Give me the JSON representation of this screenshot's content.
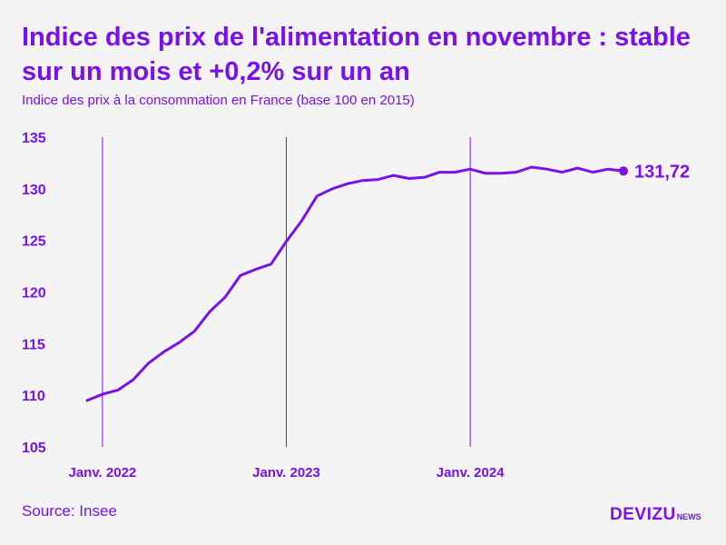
{
  "title": "Indice des prix de l'alimentation en novembre : stable sur un mois et +0,2% sur un an",
  "subtitle": "Indice des prix à la consommation en France (base 100 en 2015)",
  "source": "Source: Insee",
  "logo": {
    "main": "DEVIZU",
    "sub": "NEWS"
  },
  "colors": {
    "accent": "#7a10ea",
    "background": "#f5f4f4"
  },
  "chart_data": {
    "type": "line",
    "title": "Indice des prix de l'alimentation en novembre : stable sur un mois et +0,2% sur un an",
    "subtitle": "Indice des prix à la consommation en France (base 100 en 2015)",
    "xlabel": "",
    "ylabel": "",
    "ylim": [
      105,
      135
    ],
    "yticks": [
      105,
      110,
      115,
      120,
      125,
      130,
      135
    ],
    "xlim": [
      "2021-12",
      "2024-11"
    ],
    "xticks": [
      {
        "x": "2022-01",
        "label": "Janv. 2022"
      },
      {
        "x": "2023-01",
        "label": "Janv. 2023"
      },
      {
        "x": "2024-01",
        "label": "Janv. 2024"
      }
    ],
    "grid": "vertical lines at January ticks",
    "x": [
      "2021-12",
      "2022-01",
      "2022-02",
      "2022-03",
      "2022-04",
      "2022-05",
      "2022-06",
      "2022-07",
      "2022-08",
      "2022-09",
      "2022-10",
      "2022-11",
      "2022-12",
      "2023-01",
      "2023-02",
      "2023-03",
      "2023-04",
      "2023-05",
      "2023-06",
      "2023-07",
      "2023-08",
      "2023-09",
      "2023-10",
      "2023-11",
      "2023-12",
      "2024-01",
      "2024-02",
      "2024-03",
      "2024-04",
      "2024-05",
      "2024-06",
      "2024-07",
      "2024-08",
      "2024-09",
      "2024-10",
      "2024-11"
    ],
    "series": [
      {
        "values": [
          109.5,
          110.1,
          110.5,
          111.5,
          113.1,
          114.2,
          115.1,
          116.2,
          118.1,
          119.5,
          121.6,
          122.2,
          122.7,
          124.9,
          126.9,
          129.3,
          130.0,
          130.5,
          130.8,
          130.9,
          131.3,
          131.0,
          131.1,
          131.6,
          131.6,
          131.9,
          131.5,
          131.5,
          131.6,
          132.1,
          131.9,
          131.6,
          132.0,
          131.6,
          131.9,
          131.72
        ]
      }
    ],
    "last_label": "131,72"
  }
}
